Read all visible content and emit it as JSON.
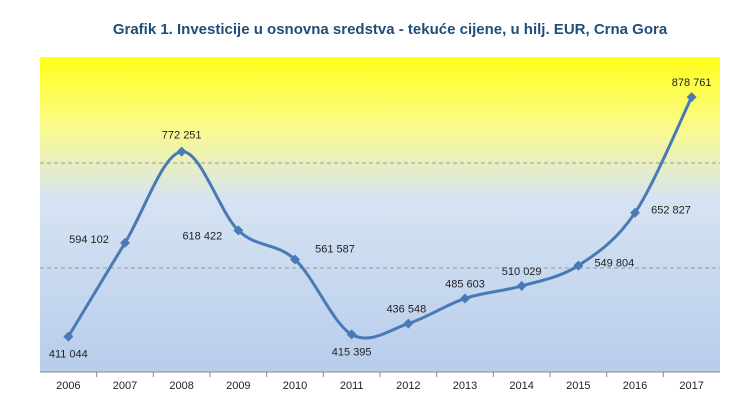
{
  "chart_data": {
    "type": "line",
    "title": "Grafik 1. Investicije u osnovna sredstva - tekuće cijene, u hilj. EUR, Crna Gora",
    "categories": [
      "2006",
      "2007",
      "2008",
      "2009",
      "2010",
      "2011",
      "2012",
      "2013",
      "2014",
      "2015",
      "2016",
      "2017"
    ],
    "series": [
      {
        "name": "Investicije",
        "color": "#4a7ab5",
        "values": [
          411044,
          594102,
          772251,
          618422,
          561587,
          415395,
          436548,
          485603,
          510029,
          549804,
          652827,
          878761
        ],
        "value_labels": [
          "411 044",
          "594 102",
          "772 251",
          "618 422",
          "561 587",
          "415 395",
          "436 548",
          "485 603",
          "510 029",
          "549 804",
          "652 827",
          "878 761"
        ]
      }
    ],
    "ylim": [
      342000,
      957000
    ],
    "grid": true
  }
}
